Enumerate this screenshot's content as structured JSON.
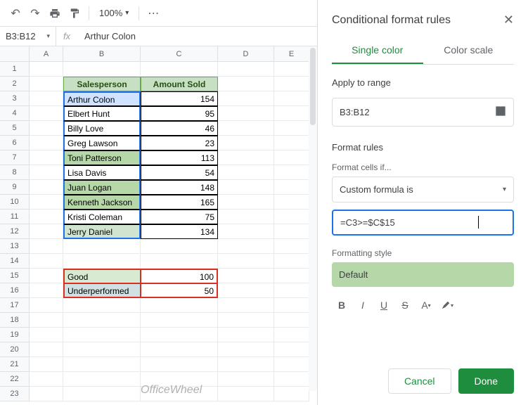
{
  "toolbar": {
    "zoom": "100%"
  },
  "namebox": {
    "range": "B3:B12",
    "formula_display": "Arthur Colon"
  },
  "columns": [
    "A",
    "B",
    "C",
    "D",
    "E"
  ],
  "table": {
    "header": {
      "b": "Salesperson",
      "c": "Amount Sold"
    },
    "rows": [
      {
        "b": "Arthur Colon",
        "c": "154",
        "hl": "hl"
      },
      {
        "b": "Elbert Hunt",
        "c": "95"
      },
      {
        "b": "Billy Love",
        "c": "46"
      },
      {
        "b": "Greg Lawson",
        "c": "23"
      },
      {
        "b": "Toni Patterson",
        "c": "113",
        "hl": "hl"
      },
      {
        "b": "Lisa Davis",
        "c": "54"
      },
      {
        "b": "Juan Logan",
        "c": "148",
        "hl": "hl"
      },
      {
        "b": "Kenneth Jackson",
        "c": "165",
        "hl": "hl"
      },
      {
        "b": "Kristi Coleman",
        "c": "75"
      },
      {
        "b": "Jerry Daniel",
        "c": "134",
        "hl": "hl2"
      }
    ]
  },
  "thresholds": [
    {
      "label": "Good",
      "value": "100",
      "bg": "good-b"
    },
    {
      "label": "Underperformed",
      "value": "50",
      "bg": "under-b"
    }
  ],
  "panel": {
    "title": "Conditional format rules",
    "tabs": {
      "single": "Single color",
      "scale": "Color scale"
    },
    "apply_label": "Apply to range",
    "range": "B3:B12",
    "rules_label": "Format rules",
    "cells_if": "Format cells if...",
    "rule_type": "Custom formula is",
    "formula": "=C3>=$C$15",
    "style_label": "Formatting style",
    "style_name": "Default",
    "cancel": "Cancel",
    "done": "Done"
  },
  "watermark": "OfficeWheel",
  "colors": {
    "accent_green": "#1e8e3e",
    "highlight": "#b6d7a8",
    "selection": "#1a73e8",
    "redbox": "#d93025"
  }
}
